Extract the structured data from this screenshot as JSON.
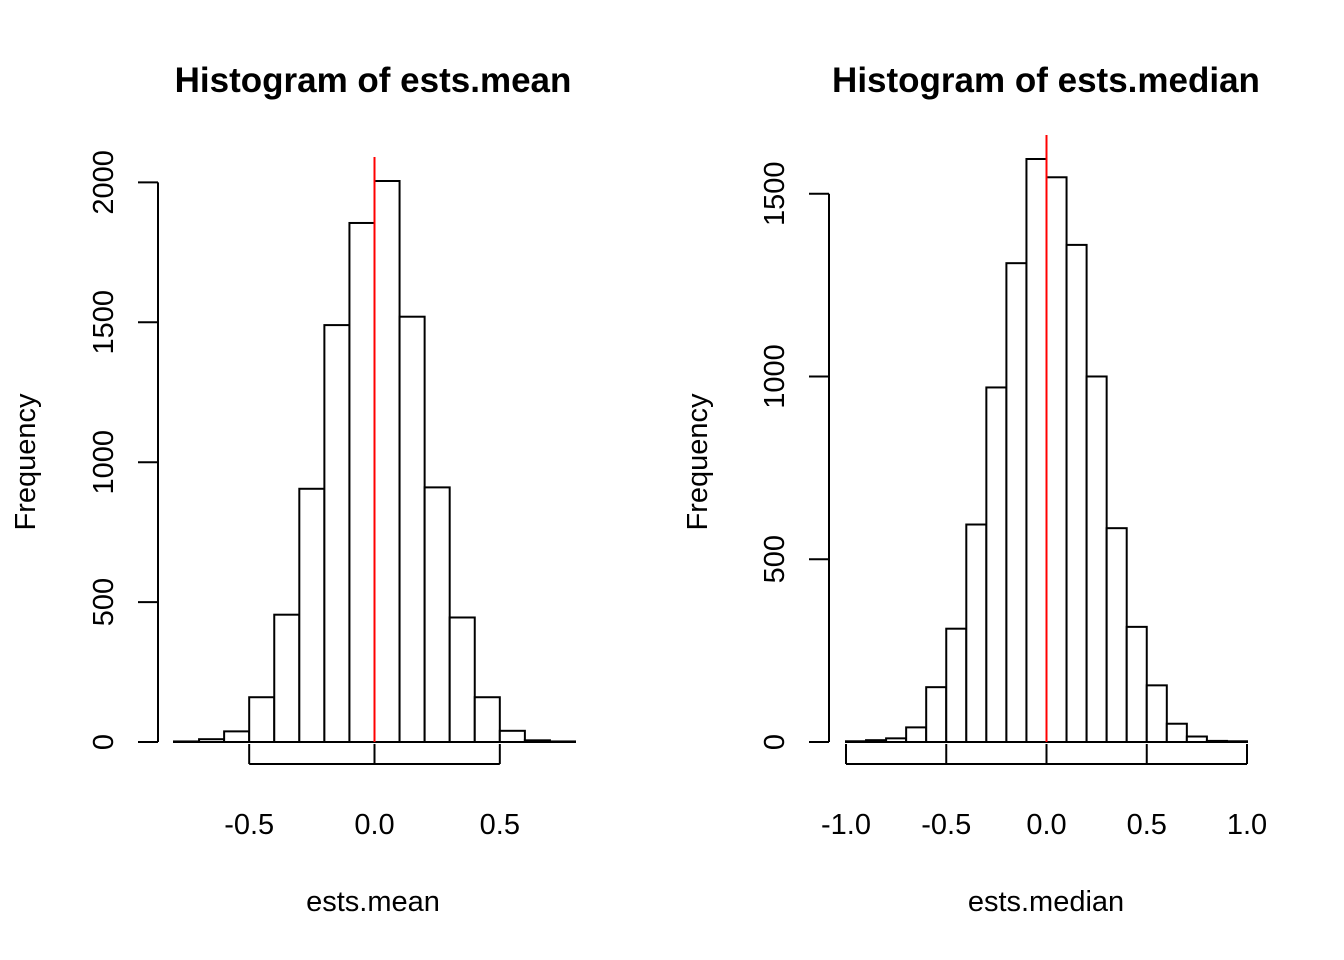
{
  "colors": {
    "bar_fill": "#ffffff",
    "bar_stroke": "#000000",
    "reference_line": "#ff0000"
  },
  "chart_data": [
    {
      "type": "bar",
      "title": "Histogram of ests.mean",
      "xlabel": "ests.mean",
      "ylabel": "Frequency",
      "bin_width": 0.1,
      "bins": [
        {
          "x0": -0.8,
          "x1": -0.7,
          "count": 2
        },
        {
          "x0": -0.7,
          "x1": -0.6,
          "count": 10
        },
        {
          "x0": -0.6,
          "x1": -0.5,
          "count": 38
        },
        {
          "x0": -0.5,
          "x1": -0.4,
          "count": 160
        },
        {
          "x0": -0.4,
          "x1": -0.3,
          "count": 455
        },
        {
          "x0": -0.3,
          "x1": -0.2,
          "count": 905
        },
        {
          "x0": -0.2,
          "x1": -0.1,
          "count": 1490
        },
        {
          "x0": -0.1,
          "x1": 0.0,
          "count": 1855
        },
        {
          "x0": 0.0,
          "x1": 0.1,
          "count": 2005
        },
        {
          "x0": 0.1,
          "x1": 0.2,
          "count": 1520
        },
        {
          "x0": 0.2,
          "x1": 0.3,
          "count": 910
        },
        {
          "x0": 0.3,
          "x1": 0.4,
          "count": 445
        },
        {
          "x0": 0.4,
          "x1": 0.5,
          "count": 160
        },
        {
          "x0": 0.5,
          "x1": 0.6,
          "count": 40
        },
        {
          "x0": 0.6,
          "x1": 0.7,
          "count": 6
        },
        {
          "x0": 0.7,
          "x1": 0.8,
          "count": 2
        }
      ],
      "xlim": [
        -0.8,
        0.8
      ],
      "ylim": [
        0,
        2005
      ],
      "x_ticks": [
        -0.5,
        0.0,
        0.5
      ],
      "x_tick_labels": [
        "-0.5",
        "0.0",
        "0.5"
      ],
      "y_ticks": [
        0,
        500,
        1000,
        1500,
        2000
      ],
      "y_tick_labels": [
        "0",
        "500",
        "1000",
        "1500",
        "2000"
      ],
      "reference_line_x": 0.0,
      "grid": false
    },
    {
      "type": "bar",
      "title": "Histogram of ests.median",
      "xlabel": "ests.median",
      "ylabel": "Frequency",
      "bin_width": 0.1,
      "bins": [
        {
          "x0": -1.0,
          "x1": -0.9,
          "count": 2
        },
        {
          "x0": -0.9,
          "x1": -0.8,
          "count": 5
        },
        {
          "x0": -0.8,
          "x1": -0.7,
          "count": 10
        },
        {
          "x0": -0.7,
          "x1": -0.6,
          "count": 40
        },
        {
          "x0": -0.6,
          "x1": -0.5,
          "count": 150
        },
        {
          "x0": -0.5,
          "x1": -0.4,
          "count": 310
        },
        {
          "x0": -0.4,
          "x1": -0.3,
          "count": 595
        },
        {
          "x0": -0.3,
          "x1": -0.2,
          "count": 970
        },
        {
          "x0": -0.2,
          "x1": -0.1,
          "count": 1310
        },
        {
          "x0": -0.1,
          "x1": 0.0,
          "count": 1595
        },
        {
          "x0": 0.0,
          "x1": 0.1,
          "count": 1545
        },
        {
          "x0": 0.1,
          "x1": 0.2,
          "count": 1360
        },
        {
          "x0": 0.2,
          "x1": 0.3,
          "count": 1000
        },
        {
          "x0": 0.3,
          "x1": 0.4,
          "count": 585
        },
        {
          "x0": 0.4,
          "x1": 0.5,
          "count": 315
        },
        {
          "x0": 0.5,
          "x1": 0.6,
          "count": 155
        },
        {
          "x0": 0.6,
          "x1": 0.7,
          "count": 50
        },
        {
          "x0": 0.7,
          "x1": 0.8,
          "count": 15
        },
        {
          "x0": 0.8,
          "x1": 0.9,
          "count": 3
        },
        {
          "x0": 0.9,
          "x1": 1.0,
          "count": 2
        }
      ],
      "xlim": [
        -1.0,
        1.0
      ],
      "ylim": [
        0,
        1595
      ],
      "x_ticks": [
        -1.0,
        -0.5,
        0.0,
        0.5,
        1.0
      ],
      "x_tick_labels": [
        "-1.0",
        "-0.5",
        "0.0",
        "0.5",
        "1.0"
      ],
      "y_ticks": [
        0,
        500,
        1000,
        1500
      ],
      "y_tick_labels": [
        "0",
        "500",
        "1000",
        "1500"
      ],
      "reference_line_x": 0.0,
      "grid": false
    }
  ]
}
